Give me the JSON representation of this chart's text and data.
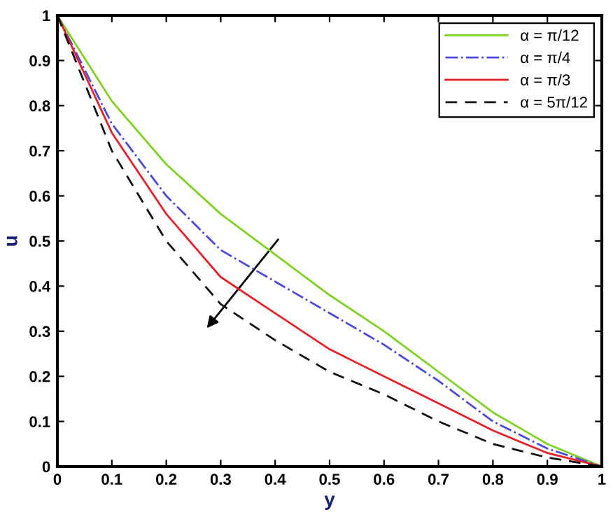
{
  "chart_data": {
    "type": "line",
    "xlabel": "y",
    "ylabel": "u",
    "xlim": [
      0,
      1
    ],
    "ylim": [
      0,
      1
    ],
    "xticks": [
      0,
      0.1,
      0.2,
      0.3,
      0.4,
      0.5,
      0.6,
      0.7,
      0.8,
      0.9,
      1
    ],
    "yticks": [
      0,
      0.1,
      0.2,
      0.3,
      0.4,
      0.5,
      0.6,
      0.7,
      0.8,
      0.9,
      1
    ],
    "x": [
      0,
      0.1,
      0.2,
      0.3,
      0.4,
      0.5,
      0.6,
      0.7,
      0.8,
      0.9,
      1
    ],
    "grid": false,
    "legend": "top right",
    "marker": "none",
    "series": [
      {
        "name": "α = π/12",
        "color": "#7ed321",
        "line_style": "solid",
        "values": [
          1,
          0.81,
          0.67,
          0.56,
          0.47,
          0.38,
          0.3,
          0.21,
          0.12,
          0.05,
          0
        ]
      },
      {
        "name": "α = π/4",
        "color": "#4a4adf",
        "line_style": "dashdot",
        "values": [
          1,
          0.76,
          0.6,
          0.48,
          0.41,
          0.34,
          0.27,
          0.19,
          0.1,
          0.04,
          0
        ]
      },
      {
        "name": "α = π/3",
        "color": "#e8202a",
        "line_style": "solid",
        "values": [
          1,
          0.74,
          0.56,
          0.42,
          0.34,
          0.26,
          0.2,
          0.14,
          0.08,
          0.03,
          0
        ]
      },
      {
        "name": "α = 5π/12",
        "color": "#111111",
        "line_style": "dashed",
        "values": [
          1,
          0.7,
          0.5,
          0.36,
          0.28,
          0.21,
          0.16,
          0.1,
          0.05,
          0.02,
          0
        ]
      }
    ]
  }
}
